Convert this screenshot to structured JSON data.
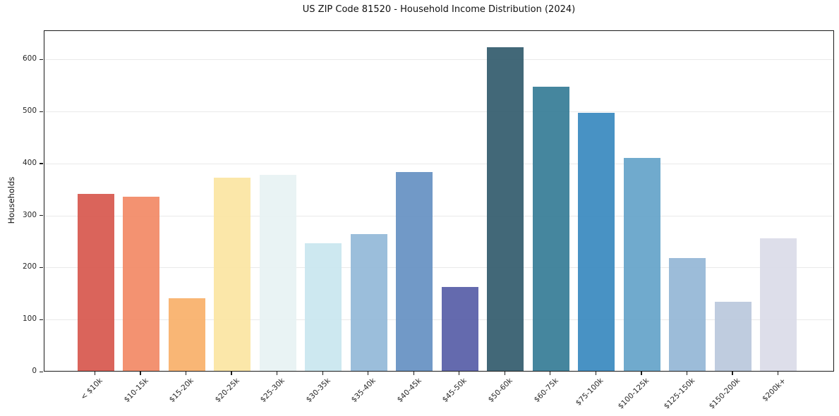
{
  "figure": {
    "background": "#ffffff"
  },
  "chart_data": {
    "type": "bar",
    "title": "US ZIP Code 81520 - Household Income Distribution (2024)",
    "xlabel": "",
    "ylabel": "Households",
    "categories": [
      "< $10k",
      "$10-15k",
      "$15-20k",
      "$20-25k",
      "$25-30k",
      "$30-35k",
      "$35-40k",
      "$40-45k",
      "$45-50k",
      "$50-60k",
      "$60-75k",
      "$75-100k",
      "$100-125k",
      "$125-150k",
      "$150-200k",
      "$200k+"
    ],
    "values": [
      340,
      335,
      139,
      371,
      377,
      246,
      263,
      382,
      161,
      622,
      546,
      496,
      409,
      217,
      133,
      255
    ],
    "bar_colors": [
      "#d7584f",
      "#f28a66",
      "#f9b06b",
      "#fbe5a3",
      "#e7f2f3",
      "#c9e6ef",
      "#93b9d8",
      "#6691c3",
      "#585fa8",
      "#345c6e",
      "#377d97",
      "#3a8abf",
      "#65a4c9",
      "#95b7d6",
      "#bac8dd",
      "#dadce8"
    ],
    "yticks": [
      0,
      100,
      200,
      300,
      400,
      500,
      600
    ],
    "ylim": [
      0,
      656
    ],
    "grid": "horizontal-light",
    "legend": "none",
    "grid_color": "#e9e9e9",
    "axis_color": "#1a1a1a",
    "tick_label_color": "#262626"
  }
}
